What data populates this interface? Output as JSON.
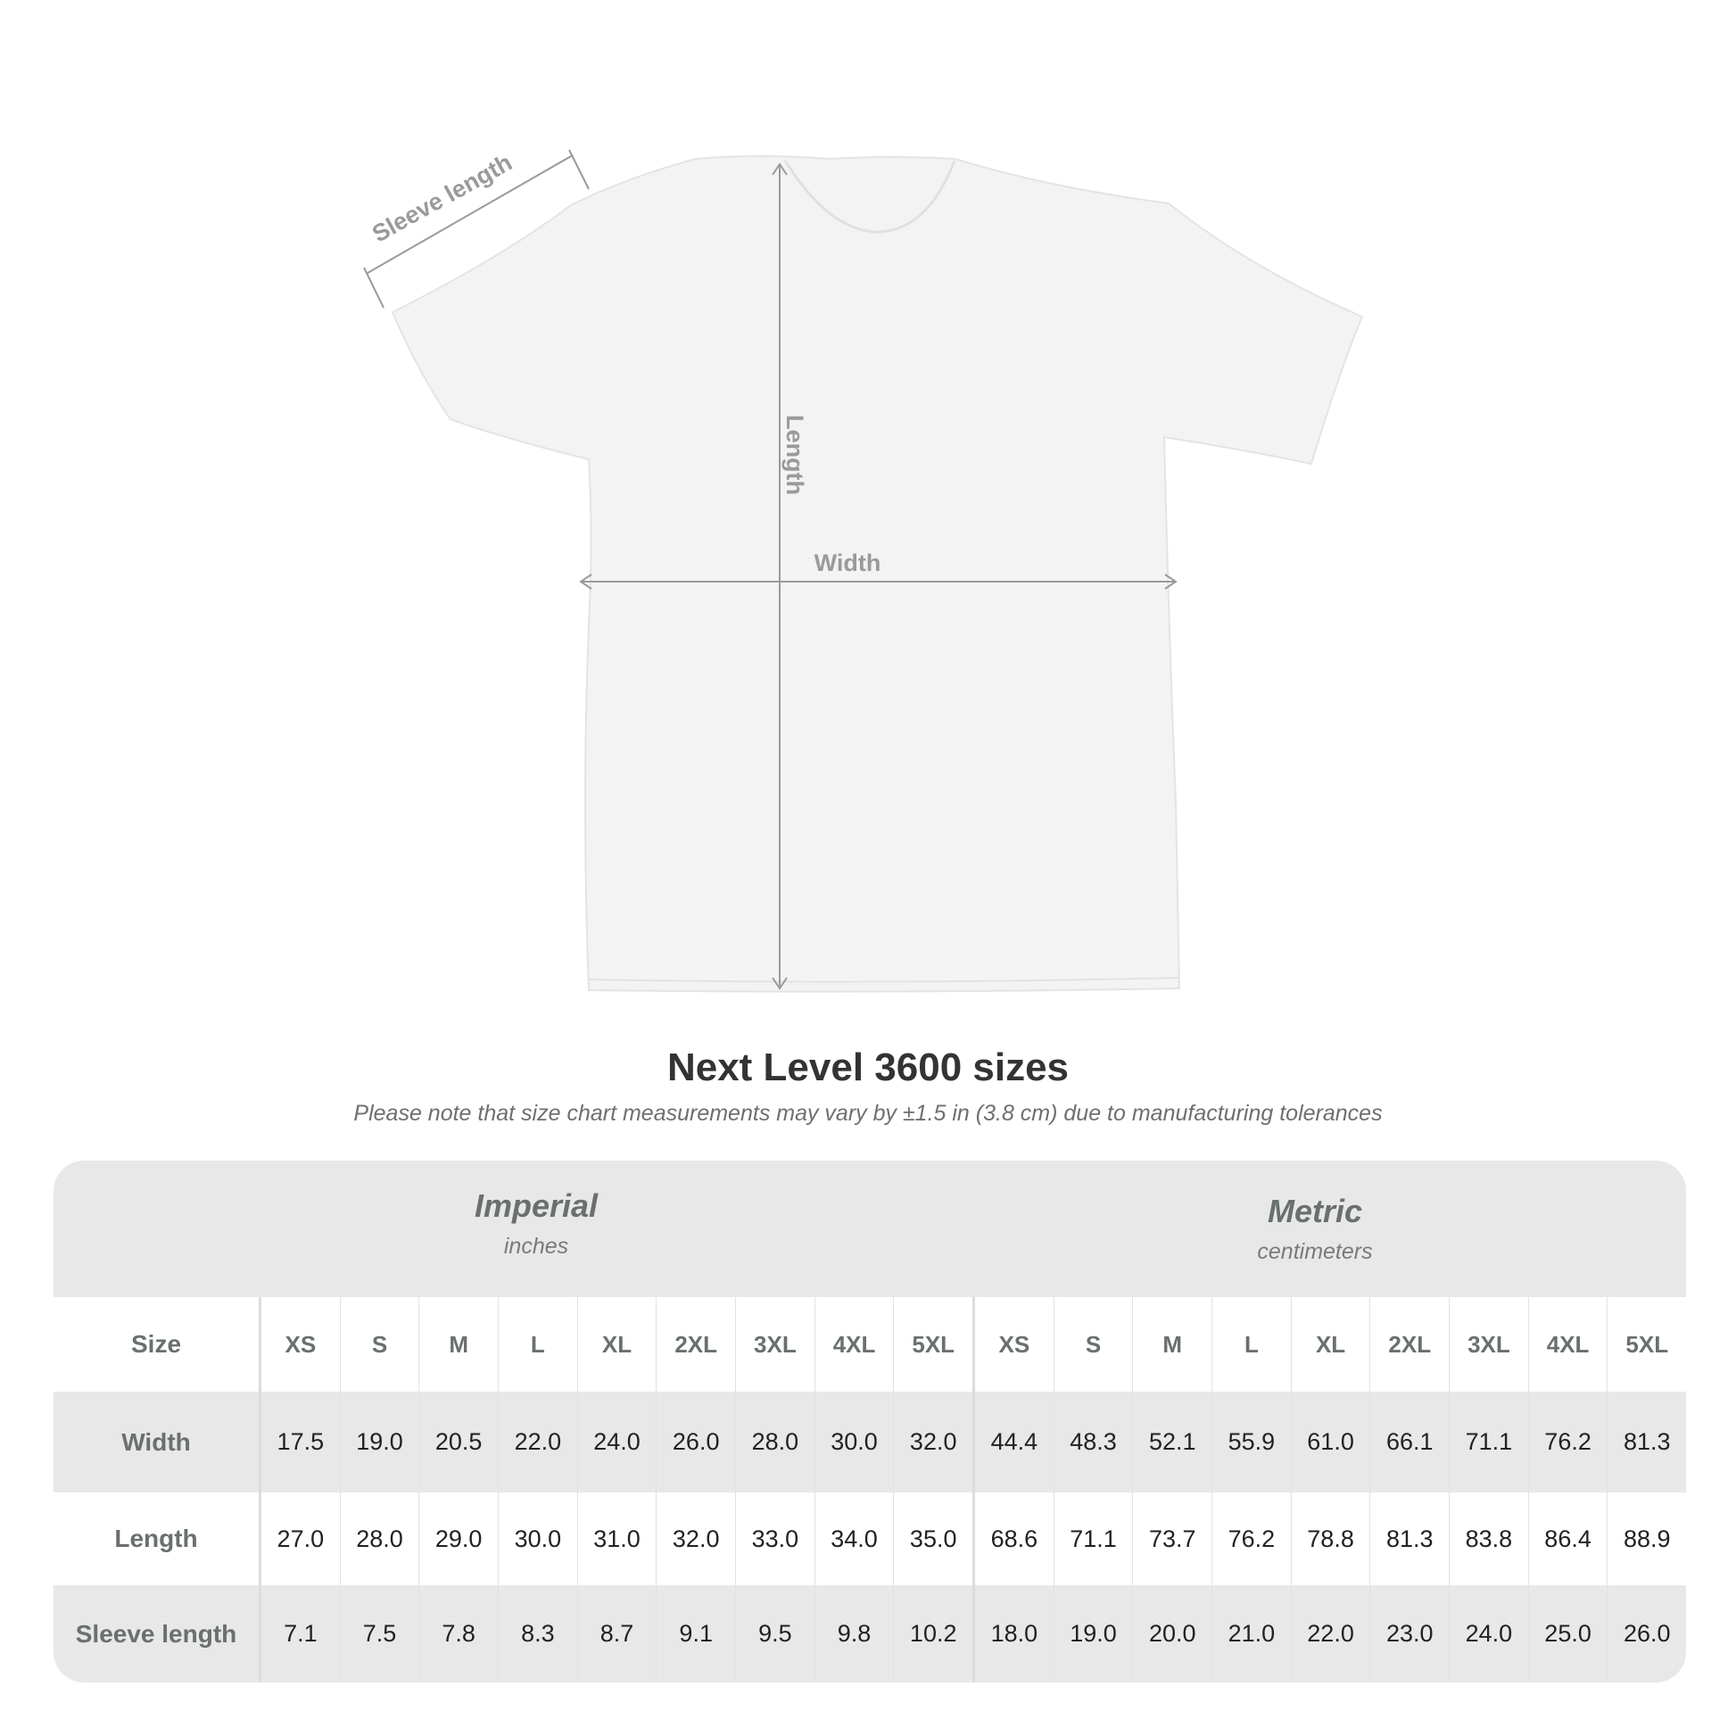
{
  "diagram": {
    "sleeve_label": "Sleeve length",
    "length_label": "Length",
    "width_label": "Width"
  },
  "title": "Next Level 3600 sizes",
  "note": "Please note that size chart measurements may vary by ±1.5 in (3.8 cm) due to manufacturing tolerances",
  "table": {
    "imperial": {
      "title": "Imperial",
      "unit": "inches"
    },
    "metric": {
      "title": "Metric",
      "unit": "centimeters"
    },
    "size_label": "Size",
    "sizes": [
      "XS",
      "S",
      "M",
      "L",
      "XL",
      "2XL",
      "3XL",
      "4XL",
      "5XL"
    ],
    "rows": [
      {
        "label": "Width",
        "imperial": [
          "17.5",
          "19.0",
          "20.5",
          "22.0",
          "24.0",
          "26.0",
          "28.0",
          "30.0",
          "32.0"
        ],
        "metric": [
          "44.4",
          "48.3",
          "52.1",
          "55.9",
          "61.0",
          "66.1",
          "71.1",
          "76.2",
          "81.3"
        ]
      },
      {
        "label": "Length",
        "imperial": [
          "27.0",
          "28.0",
          "29.0",
          "30.0",
          "31.0",
          "32.0",
          "33.0",
          "34.0",
          "35.0"
        ],
        "metric": [
          "68.6",
          "71.1",
          "73.7",
          "76.2",
          "78.8",
          "81.3",
          "83.8",
          "86.4",
          "88.9"
        ]
      },
      {
        "label": "Sleeve length",
        "imperial": [
          "7.1",
          "7.5",
          "7.8",
          "8.3",
          "8.7",
          "9.1",
          "9.5",
          "9.8",
          "10.2"
        ],
        "metric": [
          "18.0",
          "19.0",
          "20.0",
          "21.0",
          "22.0",
          "23.0",
          "24.0",
          "25.0",
          "26.0"
        ]
      }
    ]
  },
  "colors": {
    "band": "#e8e8e8",
    "label": "#6a6f70",
    "title": "#333333",
    "arrow": "#9a9a9a"
  }
}
